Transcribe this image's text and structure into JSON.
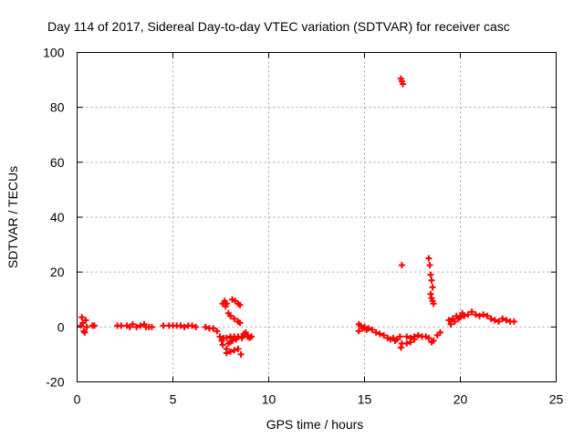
{
  "chart_data": {
    "type": "scatter",
    "title": "Day 114 of 2017, Sidereal Day-to-day VTEC variation (SDTVAR) for receiver casc",
    "xlabel": "GPS time / hours",
    "ylabel": "SDTVAR / TECUs",
    "xlim": [
      0,
      25
    ],
    "ylim": [
      -20,
      100
    ],
    "xticks": [
      0,
      5,
      10,
      15,
      20,
      25
    ],
    "yticks": [
      -20,
      0,
      20,
      40,
      60,
      80,
      100
    ],
    "xtick_labels": [
      "0",
      "5",
      "10",
      "15",
      "20",
      "25"
    ],
    "ytick_labels": [
      "-20",
      "0",
      "20",
      "40",
      "60",
      "80",
      "100"
    ],
    "grid": true,
    "marker": "plus",
    "color": "#ff0000",
    "series": [
      {
        "name": "SDTVAR",
        "points": [
          [
            0.2,
            0.5
          ],
          [
            0.25,
            3.5
          ],
          [
            0.3,
            1.5
          ],
          [
            0.35,
            -1.5
          ],
          [
            0.4,
            -2.0
          ],
          [
            0.45,
            2.5
          ],
          [
            0.5,
            0.0
          ],
          [
            0.8,
            0.5
          ],
          [
            0.9,
            0.5
          ],
          [
            2.1,
            0.5
          ],
          [
            2.3,
            0.5
          ],
          [
            2.6,
            0.5
          ],
          [
            2.75,
            0.0
          ],
          [
            2.9,
            1.0
          ],
          [
            3.1,
            0.0
          ],
          [
            3.3,
            0.5
          ],
          [
            3.5,
            1.0
          ],
          [
            3.6,
            0.0
          ],
          [
            3.75,
            0.0
          ],
          [
            3.9,
            0.0
          ],
          [
            4.5,
            0.5
          ],
          [
            4.8,
            0.5
          ],
          [
            5.0,
            0.5
          ],
          [
            5.2,
            0.5
          ],
          [
            5.4,
            0.5
          ],
          [
            5.6,
            0.0
          ],
          [
            5.8,
            0.5
          ],
          [
            6.0,
            0.5
          ],
          [
            6.2,
            0.0
          ],
          [
            6.7,
            0.0
          ],
          [
            6.9,
            -0.5
          ],
          [
            7.1,
            -0.5
          ],
          [
            7.3,
            -1.5
          ],
          [
            7.45,
            -3.5
          ],
          [
            7.55,
            -5.0
          ],
          [
            7.6,
            -6.5
          ],
          [
            7.65,
            -4.0
          ],
          [
            7.6,
            8.5
          ],
          [
            7.7,
            9.5
          ],
          [
            7.75,
            7.5
          ],
          [
            7.8,
            8.5
          ],
          [
            7.8,
            -8.0
          ],
          [
            7.9,
            -6.0
          ],
          [
            8.0,
            -5.5
          ],
          [
            8.1,
            -5.0
          ],
          [
            8.3,
            -4.5
          ],
          [
            8.6,
            -3.5
          ],
          [
            8.7,
            -2.5
          ],
          [
            8.8,
            -2.0
          ],
          [
            8.9,
            -3.5
          ],
          [
            9.0,
            -4.0
          ],
          [
            7.8,
            -9.5
          ],
          [
            8.0,
            -9.0
          ],
          [
            8.2,
            -8.5
          ],
          [
            8.4,
            -8.0
          ],
          [
            8.55,
            -10.0
          ],
          [
            7.9,
            5.0
          ],
          [
            8.0,
            4.0
          ],
          [
            8.2,
            3.0
          ],
          [
            8.4,
            2.0
          ],
          [
            8.5,
            1.5
          ],
          [
            8.1,
            10.0
          ],
          [
            8.25,
            9.5
          ],
          [
            8.4,
            8.5
          ],
          [
            8.5,
            8.0
          ],
          [
            7.8,
            -4.0
          ],
          [
            8.0,
            -3.5
          ],
          [
            8.2,
            -3.5
          ],
          [
            8.4,
            -3.5
          ],
          [
            8.6,
            -4.0
          ],
          [
            8.9,
            -3.0
          ],
          [
            9.1,
            -3.5
          ],
          [
            14.7,
            1.0
          ],
          [
            14.8,
            0.5
          ],
          [
            15.0,
            0.0
          ],
          [
            15.2,
            -0.5
          ],
          [
            15.4,
            -1.0
          ],
          [
            15.6,
            -2.0
          ],
          [
            15.8,
            -2.5
          ],
          [
            16.0,
            -3.0
          ],
          [
            16.2,
            -4.0
          ],
          [
            16.35,
            -4.5
          ],
          [
            16.5,
            -4.0
          ],
          [
            16.6,
            -5.0
          ],
          [
            16.7,
            -4.5
          ],
          [
            16.85,
            -3.5
          ],
          [
            14.7,
            -1.5
          ],
          [
            14.9,
            -0.5
          ],
          [
            15.1,
            -1.0
          ],
          [
            16.9,
            -7.5
          ],
          [
            16.95,
            -6.0
          ],
          [
            16.9,
            90.5
          ],
          [
            16.95,
            89.5
          ],
          [
            17.0,
            88.5
          ],
          [
            16.95,
            22.5
          ],
          [
            17.2,
            -3.5
          ],
          [
            17.4,
            -4.0
          ],
          [
            17.6,
            -3.5
          ],
          [
            17.8,
            -3.0
          ],
          [
            18.0,
            -3.5
          ],
          [
            18.2,
            -3.5
          ],
          [
            18.35,
            -4.0
          ],
          [
            18.5,
            -5.5
          ],
          [
            18.6,
            -5.0
          ],
          [
            18.8,
            -3.0
          ],
          [
            18.95,
            -2.0
          ],
          [
            17.2,
            -6.0
          ],
          [
            17.4,
            -5.5
          ],
          [
            17.6,
            -4.5
          ],
          [
            18.35,
            25.0
          ],
          [
            18.4,
            22.5
          ],
          [
            18.45,
            19.0
          ],
          [
            18.5,
            17.0
          ],
          [
            18.55,
            14.5
          ],
          [
            18.45,
            12.0
          ],
          [
            18.5,
            10.5
          ],
          [
            18.55,
            9.5
          ],
          [
            18.6,
            8.5
          ],
          [
            19.4,
            2.5
          ],
          [
            19.6,
            3.0
          ],
          [
            19.8,
            4.0
          ],
          [
            20.0,
            3.5
          ],
          [
            20.2,
            4.0
          ],
          [
            20.4,
            4.5
          ],
          [
            20.6,
            5.5
          ],
          [
            20.8,
            4.5
          ],
          [
            21.0,
            4.0
          ],
          [
            21.2,
            4.5
          ],
          [
            21.4,
            4.0
          ],
          [
            21.6,
            3.0
          ],
          [
            21.8,
            2.5
          ],
          [
            22.0,
            2.0
          ],
          [
            22.2,
            3.0
          ],
          [
            22.4,
            2.5
          ],
          [
            22.6,
            2.0
          ],
          [
            22.8,
            2.0
          ],
          [
            19.5,
            1.0
          ],
          [
            19.7,
            2.0
          ],
          [
            19.9,
            3.0
          ],
          [
            20.1,
            5.0
          ]
        ]
      }
    ]
  }
}
